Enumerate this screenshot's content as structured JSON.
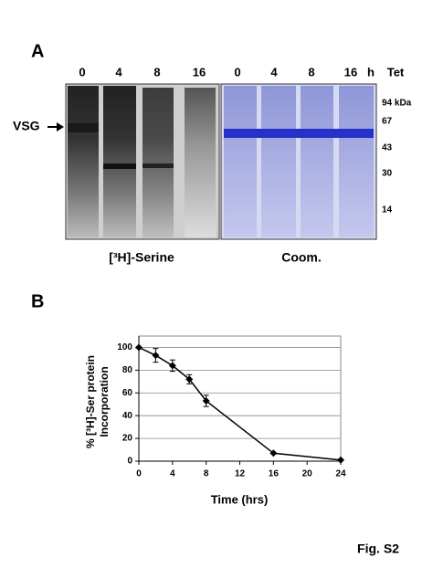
{
  "panel_a": {
    "label": "A",
    "lanes": [
      "0",
      "4",
      "8",
      "16",
      "0",
      "4",
      "8",
      "16"
    ],
    "unit": "h",
    "condition": "Tet",
    "markers": [
      "94 kDa",
      "67",
      "43",
      "30",
      "14"
    ],
    "arrow_label": "VSG",
    "left_caption": "[³H]-Serine",
    "right_caption": "Coom."
  },
  "chart_data": {
    "type": "line",
    "panel_label": "B",
    "x_label": "Time (hrs)",
    "y_label": [
      "% [³H]-Ser protein",
      "Incorporation"
    ],
    "x": [
      0,
      2,
      4,
      6,
      8,
      16,
      24
    ],
    "series": [
      {
        "color": "#000000",
        "values": [
          100,
          93,
          84,
          72,
          53,
          7,
          1
        ],
        "errors": [
          0,
          6,
          5,
          4,
          5,
          0,
          0
        ]
      }
    ],
    "xlim": [
      0,
      24
    ],
    "xticks": [
      0,
      4,
      8,
      12,
      16,
      20,
      24
    ],
    "ylim": [
      0,
      110
    ],
    "yticks": [
      0,
      20,
      40,
      60,
      80,
      100
    ],
    "grid": true
  },
  "figure_label": "Fig. S2"
}
